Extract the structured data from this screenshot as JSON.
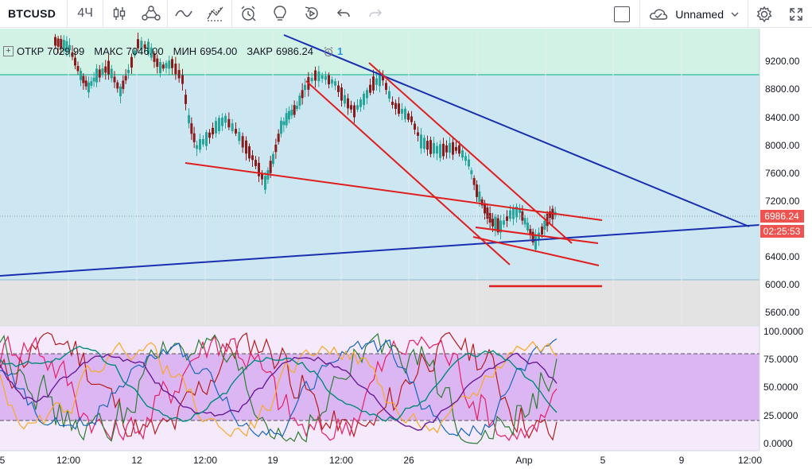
{
  "toolbar": {
    "symbol": "BTCUSD",
    "interval": "4Ч",
    "layout_name": "Unnamed",
    "icons": [
      "candles-icon",
      "indicators-icon",
      "compare-icon",
      "templates-icon",
      "alert-icon",
      "idea-icon",
      "replay-icon",
      "undo-icon",
      "redo-icon"
    ]
  },
  "legend": {
    "open_label": "ОТКР",
    "open_value": "7029.99",
    "high_label": "МАКС",
    "high_value": "7046.00",
    "low_label": "МИН",
    "low_value": "6954.00",
    "close_label": "ЗАКР",
    "close_value": "6986.24",
    "alert_count": "1"
  },
  "price_axis": {
    "labels": [
      "9200.00",
      "8800.00",
      "8400.00",
      "8000.00",
      "7600.00",
      "7200.00",
      "6400.00",
      "6000.00",
      "5600.00"
    ],
    "last_price": "6986.24",
    "countdown": "02:25:53"
  },
  "osc_axis": {
    "labels": [
      "100.0000",
      "75.0000",
      "50.0000",
      "25.0000",
      "0.0000"
    ]
  },
  "time_axis": {
    "labels": [
      "5",
      "12:00",
      "12",
      "12:00",
      "19",
      "12:00",
      "26",
      "Апр",
      "5",
      "9",
      "12:00"
    ]
  },
  "colors": {
    "up_candle": "#26a69a",
    "down_candle": "#8b1a1a",
    "trend_red": "#e01e1e",
    "trend_blue": "#1a2fb0",
    "price_tag": "#ef5350",
    "zone_blue": "#cce6f2",
    "zone_green": "#d3f2e6",
    "zone_grey": "#e3e3e3",
    "osc_band": "#dcb6f2"
  }
}
